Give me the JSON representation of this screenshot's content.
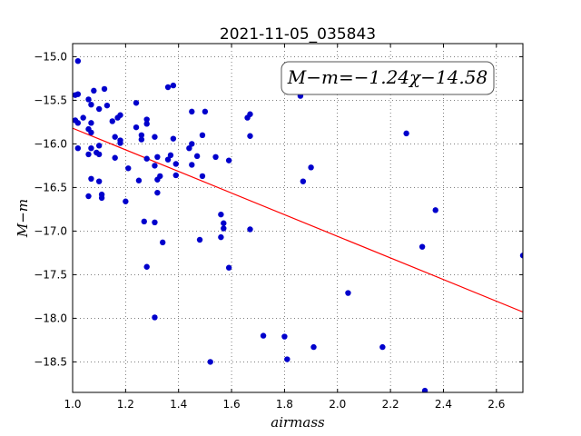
{
  "chart_data": {
    "type": "scatter",
    "title": "2021-11-05_035843",
    "xlabel": "airmass",
    "ylabel": "M−m",
    "xlim": [
      1.0,
      2.7
    ],
    "ylim": [
      -18.85,
      -14.85
    ],
    "y_inverted": true,
    "grid": true,
    "xticks": [
      1.0,
      1.2,
      1.4,
      1.6,
      1.8,
      2.0,
      2.2,
      2.4,
      2.6
    ],
    "xtick_labels": [
      "1.0",
      "1.2",
      "1.4",
      "1.6",
      "1.8",
      "2.0",
      "2.2",
      "2.4",
      "2.6"
    ],
    "yticks": [
      -15.0,
      -15.5,
      -16.0,
      -16.5,
      -17.0,
      -17.5,
      -18.0,
      -18.5
    ],
    "ytick_labels": [
      "−15.0",
      "−15.5",
      "−16.0",
      "−16.5",
      "−17.0",
      "−17.5",
      "−18.0",
      "−18.5"
    ],
    "annotation": "M−m=−1.24χ−14.58",
    "annotation_position": "top-right",
    "fit_line": {
      "slope": -1.24,
      "intercept": -14.58,
      "color": "#ff0000"
    },
    "series": [
      {
        "color": "#0000cc",
        "points": [
          [
            1.02,
            -15.05
          ],
          [
            1.01,
            -15.44
          ],
          [
            1.02,
            -15.43
          ],
          [
            1.01,
            -15.73
          ],
          [
            1.02,
            -15.76
          ],
          [
            1.04,
            -15.7
          ],
          [
            1.02,
            -16.05
          ],
          [
            1.06,
            -15.49
          ],
          [
            1.07,
            -15.55
          ],
          [
            1.08,
            -15.39
          ],
          [
            1.1,
            -15.6
          ],
          [
            1.12,
            -15.37
          ],
          [
            1.13,
            -15.56
          ],
          [
            1.07,
            -15.76
          ],
          [
            1.06,
            -15.83
          ],
          [
            1.07,
            -15.87
          ],
          [
            1.07,
            -16.05
          ],
          [
            1.06,
            -16.12
          ],
          [
            1.09,
            -16.1
          ],
          [
            1.1,
            -16.12
          ],
          [
            1.1,
            -16.02
          ],
          [
            1.15,
            -15.74
          ],
          [
            1.17,
            -15.7
          ],
          [
            1.18,
            -15.67
          ],
          [
            1.16,
            -15.92
          ],
          [
            1.18,
            -15.96
          ],
          [
            1.18,
            -15.99
          ],
          [
            1.16,
            -16.16
          ],
          [
            1.07,
            -16.4
          ],
          [
            1.1,
            -16.43
          ],
          [
            1.06,
            -16.6
          ],
          [
            1.11,
            -16.58
          ],
          [
            1.11,
            -16.62
          ],
          [
            1.2,
            -16.66
          ],
          [
            1.21,
            -16.28
          ],
          [
            1.24,
            -15.53
          ],
          [
            1.24,
            -15.81
          ],
          [
            1.26,
            -15.9
          ],
          [
            1.26,
            -15.95
          ],
          [
            1.28,
            -15.72
          ],
          [
            1.28,
            -15.77
          ],
          [
            1.28,
            -16.17
          ],
          [
            1.25,
            -16.42
          ],
          [
            1.31,
            -15.92
          ],
          [
            1.32,
            -16.15
          ],
          [
            1.31,
            -16.25
          ],
          [
            1.32,
            -16.41
          ],
          [
            1.33,
            -16.37
          ],
          [
            1.32,
            -16.56
          ],
          [
            1.27,
            -16.89
          ],
          [
            1.31,
            -16.9
          ],
          [
            1.34,
            -17.13
          ],
          [
            1.28,
            -17.41
          ],
          [
            1.31,
            -17.99
          ],
          [
            1.36,
            -15.35
          ],
          [
            1.38,
            -15.33
          ],
          [
            1.36,
            -16.18
          ],
          [
            1.37,
            -16.13
          ],
          [
            1.38,
            -15.94
          ],
          [
            1.39,
            -16.23
          ],
          [
            1.39,
            -16.36
          ],
          [
            1.45,
            -15.63
          ],
          [
            1.44,
            -16.05
          ],
          [
            1.45,
            -16.0
          ],
          [
            1.47,
            -16.14
          ],
          [
            1.45,
            -16.24
          ],
          [
            1.5,
            -15.63
          ],
          [
            1.49,
            -15.9
          ],
          [
            1.49,
            -16.37
          ],
          [
            1.48,
            -17.1
          ],
          [
            1.54,
            -16.15
          ],
          [
            1.56,
            -16.81
          ],
          [
            1.57,
            -16.91
          ],
          [
            1.57,
            -16.97
          ],
          [
            1.56,
            -17.07
          ],
          [
            1.59,
            -16.19
          ],
          [
            1.59,
            -17.42
          ],
          [
            1.52,
            -18.5
          ],
          [
            1.66,
            -15.7
          ],
          [
            1.67,
            -15.66
          ],
          [
            1.67,
            -15.91
          ],
          [
            1.67,
            -16.98
          ],
          [
            1.72,
            -18.2
          ],
          [
            1.8,
            -18.21
          ],
          [
            1.81,
            -18.47
          ],
          [
            1.86,
            -15.45
          ],
          [
            1.87,
            -16.43
          ],
          [
            1.9,
            -16.27
          ],
          [
            1.91,
            -18.33
          ],
          [
            2.04,
            -17.71
          ],
          [
            2.17,
            -18.33
          ],
          [
            2.26,
            -15.88
          ],
          [
            2.32,
            -17.18
          ],
          [
            2.33,
            -18.83
          ],
          [
            2.37,
            -16.76
          ],
          [
            2.7,
            -17.28
          ]
        ]
      }
    ]
  }
}
